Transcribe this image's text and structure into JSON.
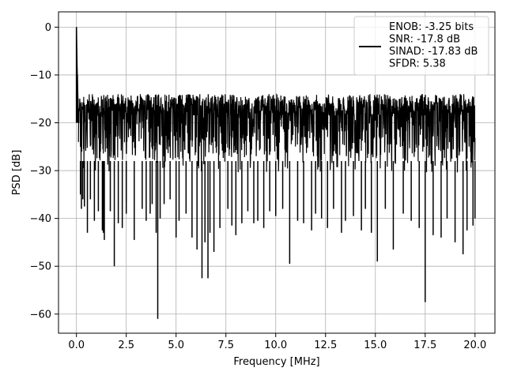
{
  "chart_data": {
    "type": "line",
    "xlabel": "Frequency [MHz]",
    "ylabel": "PSD [dB]",
    "xlim": [
      -0.9,
      21.0
    ],
    "ylim": [
      -64.0,
      3.2
    ],
    "xticks": [
      0.0,
      2.5,
      5.0,
      7.5,
      10.0,
      12.5,
      15.0,
      17.5,
      20.0
    ],
    "xtick_labels": [
      "0.0",
      "2.5",
      "5.0",
      "7.5",
      "10.0",
      "12.5",
      "15.0",
      "17.5",
      "20.0"
    ],
    "yticks": [
      0,
      -10,
      -20,
      -30,
      -40,
      -50,
      -60
    ],
    "ytick_labels": [
      "0",
      "−10",
      "−20",
      "−30",
      "−40",
      "−50",
      "−60"
    ],
    "grid": true,
    "legend_position": "top-right",
    "legend": {
      "line1": "ENOB: -3.25 bits",
      "line2": "SNR: -17.8 dB",
      "line3": "SINAD: -17.83 dB",
      "line4": "SFDR: 5.38"
    },
    "line_color": "#000000",
    "series": [
      {
        "x": [
          0.0,
          0.02,
          0.05,
          0.08,
          0.12,
          0.2,
          0.25,
          0.32,
          0.4,
          0.55,
          0.7,
          0.9,
          1.1,
          1.3,
          1.35,
          1.4,
          1.7,
          1.9,
          2.1,
          2.3,
          2.5,
          2.5,
          2.9,
          3.3,
          3.5,
          3.7,
          3.8,
          4.0,
          4.08,
          4.2,
          4.4,
          4.7,
          5.0,
          5.15,
          5.5,
          5.8,
          6.05,
          6.3,
          6.45,
          6.6,
          6.7,
          6.9,
          7.2,
          7.6,
          7.8,
          8.0,
          8.3,
          8.6,
          8.9,
          9.1,
          9.4,
          9.7,
          10.0,
          10.35,
          10.7,
          11.1,
          11.4,
          11.8,
          12.0,
          12.3,
          12.6,
          12.9,
          13.3,
          13.5,
          13.9,
          14.3,
          14.5,
          14.8,
          15.1,
          15.5,
          15.9,
          16.4,
          16.8,
          17.2,
          17.5,
          17.9,
          18.3,
          18.6,
          19.0,
          19.4,
          19.6,
          19.9,
          20.0
        ],
        "y": [
          0.0,
          -6.5,
          -10.0,
          -15.0,
          -17.0,
          -35.0,
          -38.0,
          -36.0,
          -37.5,
          -43.0,
          -36.0,
          -40.5,
          -38.5,
          -42.5,
          -43.0,
          -44.5,
          -38.5,
          -50.0,
          -41.0,
          -42.0,
          -39.0,
          -36.5,
          -44.5,
          -38.0,
          -40.5,
          -39.0,
          -37.0,
          -43.0,
          -61.0,
          -40.0,
          -37.0,
          -36.0,
          -44.0,
          -40.5,
          -39.0,
          -44.0,
          -46.5,
          -52.5,
          -45.0,
          -52.5,
          -43.0,
          -47.0,
          -42.0,
          -38.0,
          -41.5,
          -43.5,
          -41.0,
          -38.5,
          -41.0,
          -40.5,
          -42.0,
          -38.5,
          -39.5,
          -38.0,
          -49.5,
          -40.5,
          -41.0,
          -42.5,
          -39.0,
          -40.0,
          -42.0,
          -38.0,
          -43.0,
          -40.5,
          -39.5,
          -42.5,
          -38.0,
          -43.0,
          -49.0,
          -38.0,
          -46.5,
          -39.0,
          -40.5,
          -42.0,
          -57.5,
          -43.5,
          -44.0,
          -40.0,
          -45.0,
          -47.5,
          -42.5,
          -41.5,
          -40.0
        ]
      }
    ],
    "band": {
      "top": -14.0,
      "mid_low": -18.5,
      "mid_high": -31.0,
      "bottom": -36.0
    }
  }
}
